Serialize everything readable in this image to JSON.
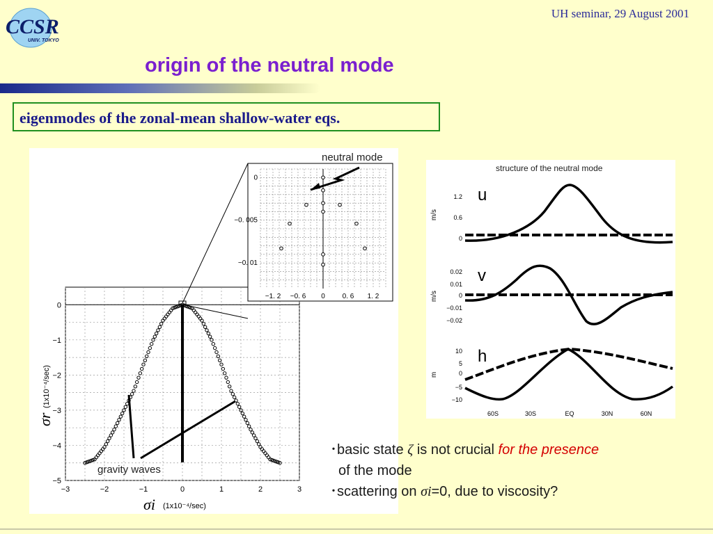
{
  "header": {
    "logo_text": "CCSR",
    "logo_subtext": "UNIV. TOKYO",
    "seminar": "UH seminar, 29 August 2001",
    "title": "origin of the neutral mode"
  },
  "boxed_heading": "eigenmodes of the zonal-mean shallow-water eqs.",
  "left_figure": {
    "inset_label": "neutral mode",
    "annotation": "gravity waves",
    "y_label_sym": "σr",
    "y_label_unit": "(1x10⁻⁴/sec)",
    "x_label_sym": "σi",
    "x_label_unit": "(1x10⁻⁴/sec)",
    "main_x_ticks": [
      "−3",
      "−2",
      "−1",
      "0",
      "1",
      "2",
      "3"
    ],
    "main_y_ticks": [
      "0",
      "−1",
      "−2",
      "−3",
      "−4",
      "−5"
    ],
    "inset_x_ticks": [
      "−1. 2",
      "−0. 6",
      "0",
      "0. 6",
      "1. 2"
    ],
    "inset_y_ticks": [
      "0",
      "−0. 005",
      "−0. 01"
    ]
  },
  "right_figure": {
    "title": "structure of the neutral mode",
    "panels": [
      {
        "var": "u",
        "unit": "m/s",
        "ticks": [
          "1.2",
          "0.6",
          "0"
        ]
      },
      {
        "var": "v",
        "unit": "m/s",
        "ticks": [
          "0.02",
          "0.01",
          "0",
          "−0.01",
          "−0.02"
        ]
      },
      {
        "var": "h",
        "unit": "m",
        "ticks": [
          "10",
          "5",
          "0",
          "−5",
          "−10"
        ]
      }
    ],
    "x_ticks": [
      "60S",
      "30S",
      "EQ",
      "30N",
      "60N"
    ]
  },
  "bullets": {
    "b1_pre": "basic state ",
    "b1_sym": "ζ",
    "b1_mid": " is not crucial ",
    "b1_red": "for the presence",
    "b1_cont": "of the mode",
    "b2_pre": "scattering on ",
    "b2_sym": "σi",
    "b2_post": "=0, due to viscosity?"
  },
  "chart_data": [
    {
      "type": "scatter",
      "title": "",
      "xlabel": "σi (1x10⁻⁴/sec)",
      "ylabel": "σr (1x10⁻⁴/sec)",
      "xlim": [
        -3,
        3
      ],
      "ylim": [
        -5,
        0.5
      ],
      "grid": true,
      "series": [
        {
          "name": "",
          "x": [
            -2.5,
            -2.25,
            -2.0,
            -1.75,
            -1.5,
            -1.25,
            -1.0,
            -0.75,
            -0.5,
            -0.25,
            0,
            0.25,
            0.5,
            0.75,
            1.0,
            1.25,
            1.5,
            1.75,
            2.0,
            2.25,
            2.5
          ],
          "y": [
            -4.5,
            -4.4,
            -4.05,
            -3.55,
            -3.0,
            -2.45,
            -1.7,
            -1.0,
            -0.45,
            -0.1,
            0,
            -0.1,
            -0.45,
            -1.0,
            -1.7,
            -2.45,
            -3.0,
            -3.55,
            -4.05,
            -4.4,
            -4.5
          ]
        }
      ]
    },
    {
      "type": "scatter",
      "title": "",
      "xlim": [
        -1.5,
        1.5
      ],
      "ylim": [
        -0.013,
        0.001
      ],
      "grid": true,
      "series": [
        {
          "name": "",
          "x": [
            0,
            0,
            0,
            0,
            0,
            0,
            -0.4,
            0.4,
            -0.8,
            0.8,
            -1.0,
            1.0
          ],
          "y": [
            0,
            -0.0015,
            -0.003,
            -0.004,
            -0.009,
            -0.0102,
            -0.0032,
            -0.0032,
            -0.0054,
            -0.0054,
            -0.0083,
            -0.0083
          ]
        }
      ]
    },
    {
      "type": "line",
      "title": "structure of the neutral mode",
      "x": [
        "60S",
        "30S",
        "EQ",
        "30N",
        "60N"
      ],
      "series": [
        {
          "name": "u",
          "values": [
            0,
            0.2,
            1.3,
            0.2,
            0
          ]
        },
        {
          "name": "v",
          "values": [
            0.005,
            0.02,
            0,
            -0.02,
            0
          ]
        },
        {
          "name": "h",
          "values": [
            -10,
            -5,
            10,
            -5,
            -10
          ]
        }
      ]
    }
  ]
}
